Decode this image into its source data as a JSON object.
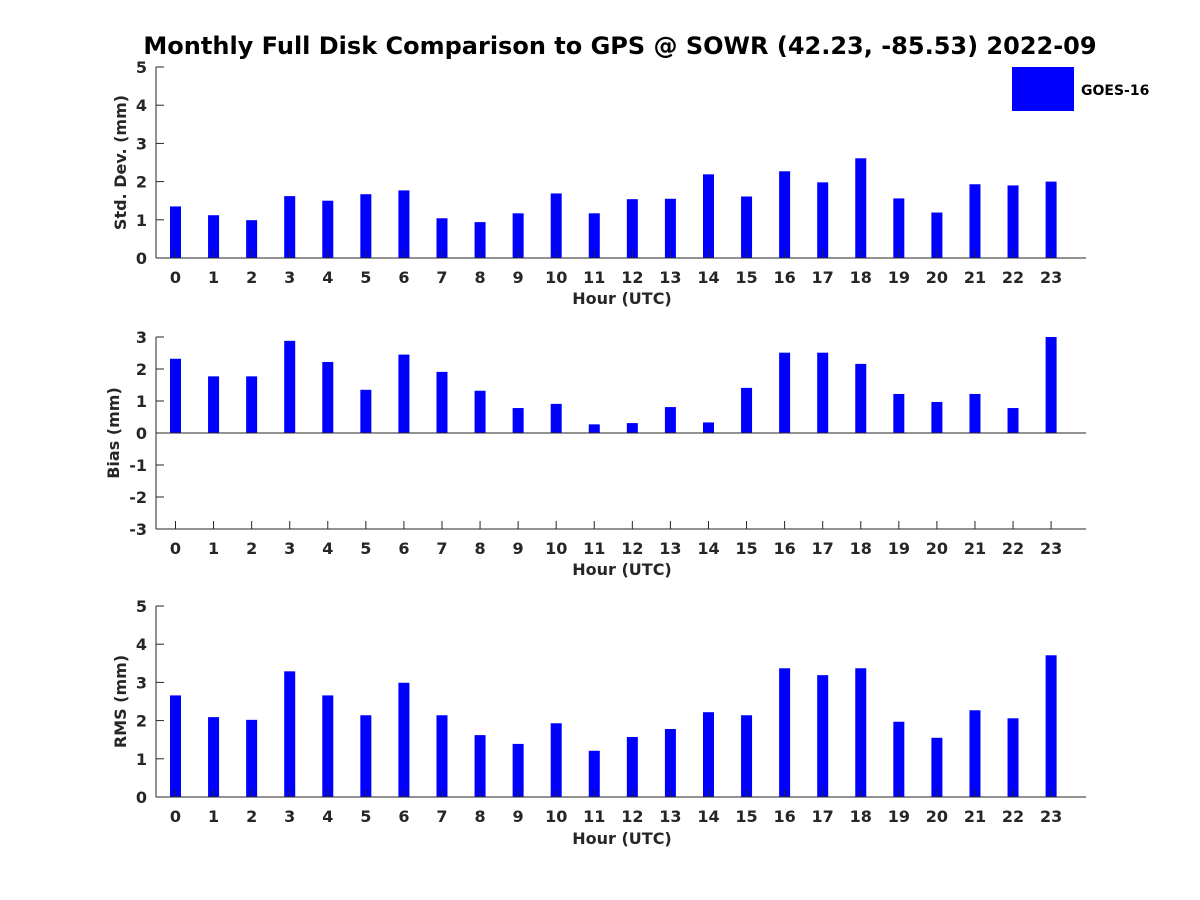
{
  "figure": {
    "title": "Monthly Full Disk Comparison to GPS @ SOWR (42.23, -85.53) 2022-09",
    "legend": {
      "label": "GOES-16",
      "color": "#0000ff",
      "placement": "top-right"
    }
  },
  "chart_data": [
    {
      "type": "bar",
      "name": "std-dev",
      "xlabel": "Hour (UTC)",
      "ylabel": "Std. Dev. (mm)",
      "ylim": [
        0,
        5
      ],
      "yticks": [
        0,
        1,
        2,
        3,
        4,
        5
      ],
      "categories": [
        "0",
        "1",
        "2",
        "3",
        "4",
        "5",
        "6",
        "7",
        "8",
        "9",
        "10",
        "11",
        "12",
        "13",
        "14",
        "15",
        "16",
        "17",
        "18",
        "19",
        "20",
        "21",
        "22",
        "23"
      ],
      "series": [
        {
          "name": "GOES-16",
          "color": "#0000ff",
          "values": [
            1.35,
            1.12,
            0.99,
            1.62,
            1.5,
            1.67,
            1.77,
            1.04,
            0.94,
            1.17,
            1.69,
            1.17,
            1.54,
            1.55,
            2.19,
            1.61,
            2.27,
            1.98,
            2.61,
            1.56,
            1.19,
            1.93,
            1.9,
            2.0
          ]
        }
      ]
    },
    {
      "type": "bar",
      "name": "bias",
      "xlabel": "Hour (UTC)",
      "ylabel": "Bias (mm)",
      "ylim": [
        -3,
        3
      ],
      "yticks": [
        -3,
        -2,
        -1,
        0,
        1,
        2,
        3
      ],
      "baseline": 0,
      "categories": [
        "0",
        "1",
        "2",
        "3",
        "4",
        "5",
        "6",
        "7",
        "8",
        "9",
        "10",
        "11",
        "12",
        "13",
        "14",
        "15",
        "16",
        "17",
        "18",
        "19",
        "20",
        "21",
        "22",
        "23"
      ],
      "series": [
        {
          "name": "GOES-16",
          "color": "#0000ff",
          "values": [
            2.32,
            1.77,
            1.77,
            2.88,
            2.22,
            1.35,
            2.45,
            1.91,
            1.32,
            0.78,
            0.91,
            0.27,
            0.31,
            0.81,
            0.33,
            1.41,
            2.51,
            2.51,
            2.16,
            1.22,
            0.97,
            1.22,
            0.78,
            3.0
          ]
        }
      ]
    },
    {
      "type": "bar",
      "name": "rms",
      "xlabel": "Hour (UTC)",
      "ylabel": "RMS (mm)",
      "ylim": [
        0,
        5
      ],
      "yticks": [
        0,
        1,
        2,
        3,
        4,
        5
      ],
      "categories": [
        "0",
        "1",
        "2",
        "3",
        "4",
        "5",
        "6",
        "7",
        "8",
        "9",
        "10",
        "11",
        "12",
        "13",
        "14",
        "15",
        "16",
        "17",
        "18",
        "19",
        "20",
        "21",
        "22",
        "23"
      ],
      "series": [
        {
          "name": "GOES-16",
          "color": "#0000ff",
          "values": [
            2.66,
            2.09,
            2.02,
            3.29,
            2.66,
            2.14,
            2.99,
            2.14,
            1.62,
            1.39,
            1.93,
            1.21,
            1.57,
            1.78,
            2.22,
            2.14,
            3.37,
            3.19,
            3.37,
            1.97,
            1.55,
            2.27,
            2.06,
            3.71
          ]
        }
      ]
    }
  ]
}
